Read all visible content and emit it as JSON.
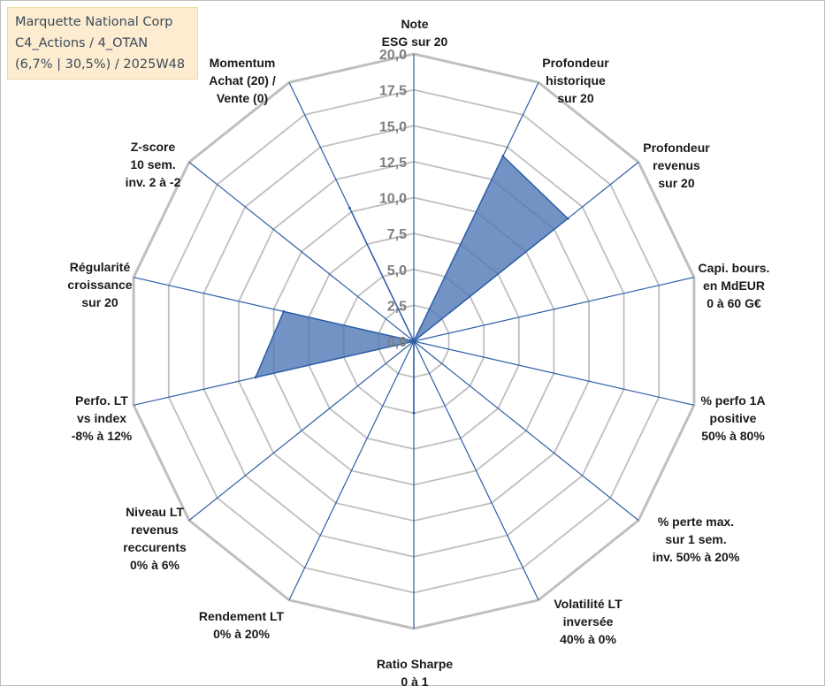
{
  "title_box": {
    "line1": "Marquette National Corp",
    "line2": "C4_Actions / 4_OTAN",
    "line3": "(6,7% | 30,5%) / 2025W48"
  },
  "colors": {
    "grid": "#bfbfbf",
    "spoke": "#2e5ea8",
    "fill": "#4a74b4",
    "fill_edge": "#2e5ea8",
    "ticks": "#7f7f7f",
    "labels": "#1a1a1a",
    "title_bg": "#fdeccf"
  },
  "chart_data": {
    "type": "radar",
    "r_min": 0,
    "r_max": 20,
    "tick_step": 2.5,
    "tick_labels": [
      "0,0",
      "2,5",
      "5,0",
      "7,5",
      "10,0",
      "12,5",
      "15,0",
      "17,5",
      "20,0"
    ],
    "axes": [
      {
        "lines": [
          "Note",
          "ESG sur 20"
        ]
      },
      {
        "lines": [
          "Profondeur",
          "historique",
          "sur 20"
        ]
      },
      {
        "lines": [
          "Profondeur",
          "revenus",
          "sur 20"
        ]
      },
      {
        "lines": [
          "Capi. bours.",
          "en MdEUR",
          "0 à 60 G€"
        ]
      },
      {
        "lines": [
          "% perfo 1A",
          "positive",
          "50% à 80%"
        ]
      },
      {
        "lines": [
          "% perte max.",
          "sur 1 sem.",
          "inv. 50% à 20%"
        ]
      },
      {
        "lines": [
          "Volatilité LT",
          "inversée",
          "40% à 0%"
        ]
      },
      {
        "lines": [
          "Ratio Sharpe",
          "0 à 1"
        ]
      },
      {
        "lines": [
          "Rendement LT",
          "0% à 20%"
        ]
      },
      {
        "lines": [
          "Niveau LT",
          "revenus",
          "reccurents",
          "0% à 6%"
        ]
      },
      {
        "lines": [
          "Perfo. LT",
          "vs index",
          "-8% à 12%"
        ]
      },
      {
        "lines": [
          "Régularité",
          "croissance",
          "sur 20"
        ]
      },
      {
        "lines": [
          "Z-score",
          "10 sem.",
          "inv. 2 à -2"
        ]
      },
      {
        "lines": [
          "Momentum",
          "Achat (20) /",
          "Vente (0)"
        ]
      }
    ],
    "series": [
      {
        "name": "Marquette National Corp",
        "values": [
          0,
          14.3,
          13.7,
          0,
          0,
          0,
          0,
          5.0,
          0,
          0,
          11.3,
          9.3,
          0,
          10.3
        ]
      }
    ]
  }
}
